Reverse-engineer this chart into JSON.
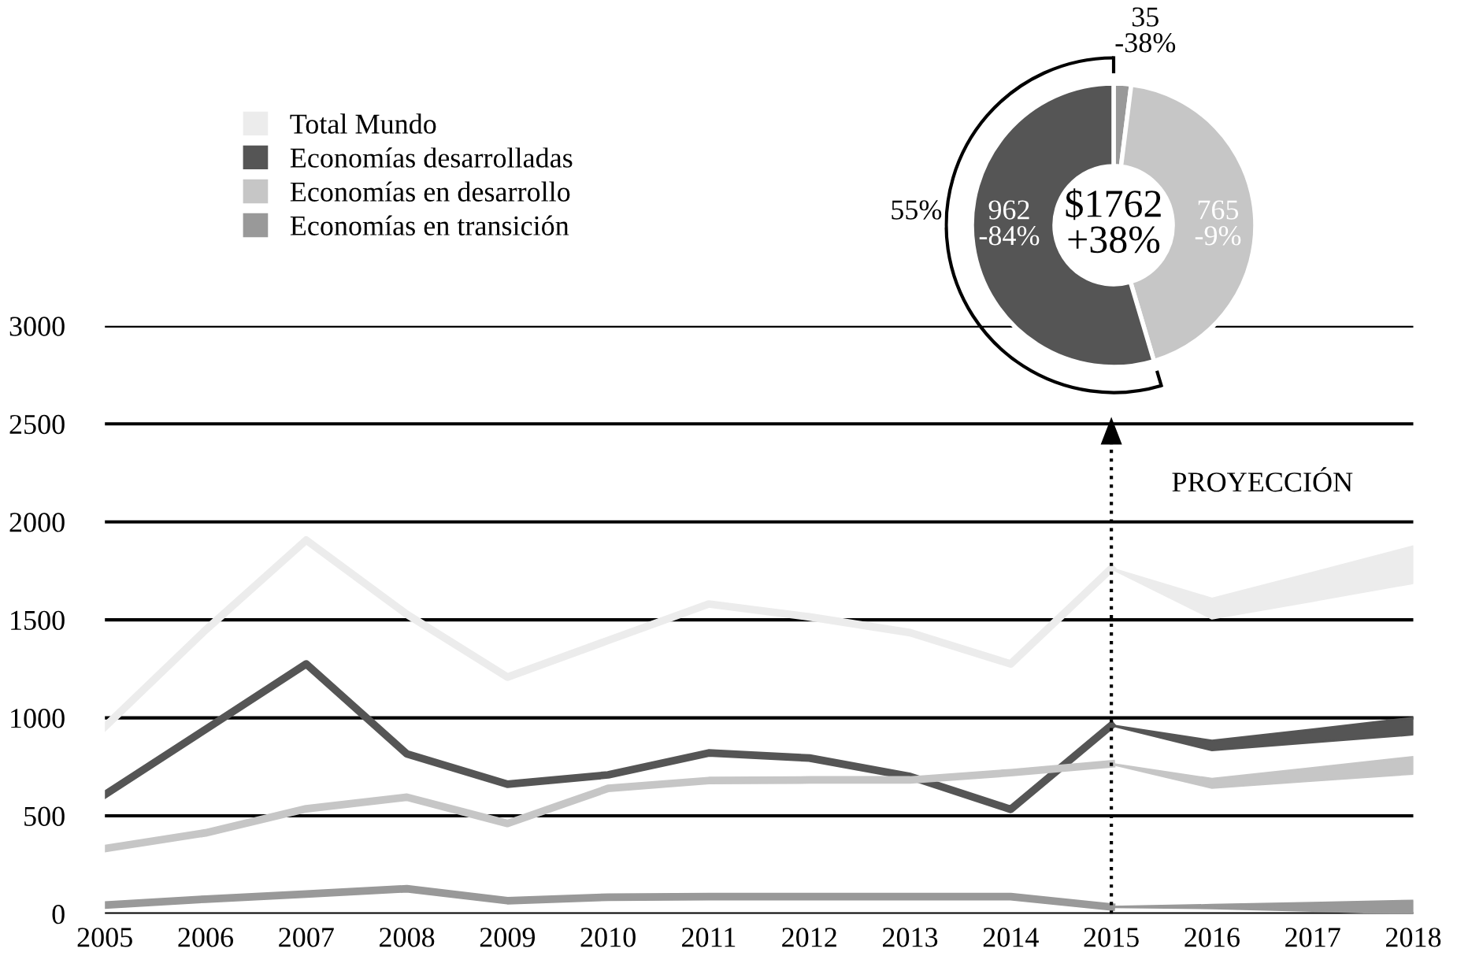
{
  "chart_data": [
    {
      "type": "line",
      "x": [
        2005,
        2006,
        2007,
        2008,
        2009,
        2010,
        2011,
        2012,
        2013,
        2014,
        2015,
        2016,
        2017,
        2018
      ],
      "series": [
        {
          "name": "Total Mundo",
          "color": "#ececec",
          "values": [
            955,
            1448,
            1907,
            1528,
            1208,
            1395,
            1581,
            1515,
            1435,
            1275,
            1762,
            null,
            null,
            null
          ],
          "lower": [
            null,
            null,
            null,
            null,
            null,
            null,
            null,
            null,
            null,
            null,
            1762,
            1507,
            1597,
            1688
          ],
          "upper": [
            null,
            null,
            null,
            null,
            null,
            null,
            null,
            null,
            null,
            null,
            1762,
            1608,
            1740,
            1875
          ]
        },
        {
          "name": "Economías desarrolladas",
          "color": "#555555",
          "values": [
            608,
            941,
            1275,
            816,
            661,
            709,
            821,
            795,
            701,
            533,
            962,
            null,
            null,
            null
          ],
          "lower": [
            null,
            null,
            null,
            null,
            null,
            null,
            null,
            null,
            null,
            null,
            962,
            835,
            875,
            915
          ],
          "upper": [
            null,
            null,
            null,
            null,
            null,
            null,
            null,
            null,
            null,
            null,
            962,
            883,
            941,
            1000
          ]
        },
        {
          "name": "Economías en desarrollo",
          "color": "#c6c6c6",
          "values": [
            333,
            413,
            536,
            595,
            461,
            640,
            680,
            683,
            683,
            720,
            765,
            null,
            null,
            null
          ],
          "lower": [
            null,
            null,
            null,
            null,
            null,
            null,
            null,
            null,
            null,
            null,
            765,
            643,
            679,
            715
          ],
          "upper": [
            null,
            null,
            null,
            null,
            null,
            null,
            null,
            null,
            null,
            null,
            765,
            688,
            744,
            800
          ]
        },
        {
          "name": "Economías en transición",
          "color": "#999999",
          "values": [
            45,
            75,
            101,
            128,
            67,
            85,
            88,
            88,
            88,
            88,
            35,
            null,
            null,
            null
          ],
          "lower": [
            null,
            null,
            null,
            null,
            null,
            null,
            null,
            null,
            null,
            null,
            35,
            29,
            15,
            0
          ],
          "upper": [
            null,
            null,
            null,
            null,
            null,
            null,
            null,
            null,
            null,
            null,
            35,
            45,
            56,
            67
          ]
        }
      ],
      "xlim": [
        2005,
        2018
      ],
      "xticks": [
        2005,
        2006,
        2007,
        2008,
        2009,
        2010,
        2011,
        2012,
        2013,
        2014,
        2015,
        2016,
        2017,
        2018
      ],
      "ylim": [
        0,
        3000
      ],
      "yticks": [
        0,
        500,
        1000,
        1500,
        2000,
        2500,
        3000
      ],
      "grid": "y",
      "legend": "top left",
      "line_style": "solid",
      "marker": "none",
      "ref_lines": [
        {
          "axis": "x",
          "value": 2015,
          "label": "PROYECCIÓN",
          "line_style": "dotted",
          "color": "#000000"
        }
      ]
    },
    {
      "type": "donut",
      "categories": [
        null,
        null,
        null
      ],
      "values": [
        35,
        765,
        962
      ],
      "colors": [
        "#999999",
        "#c6c6c6",
        "#555555"
      ],
      "value_labels": [
        "35\n-38%",
        "765\n-9%",
        "962\n-84%"
      ],
      "annotations": [
        "$1762\n+38%",
        "55%"
      ]
    }
  ]
}
